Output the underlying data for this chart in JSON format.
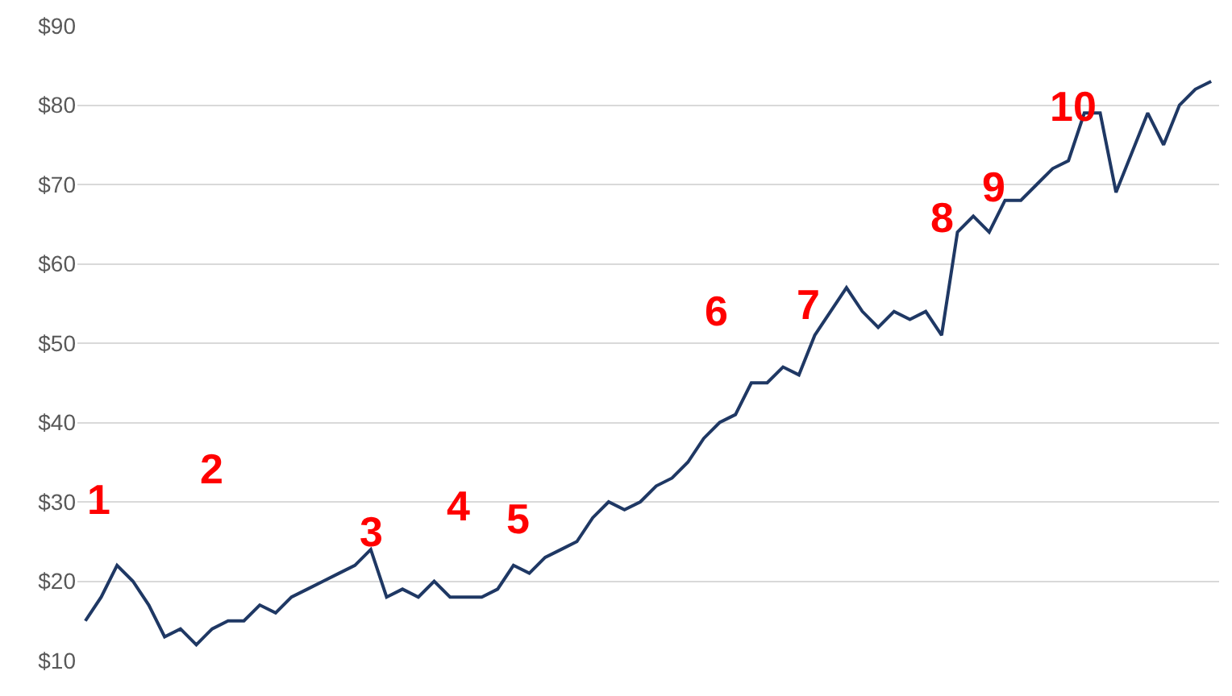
{
  "chart_data": {
    "type": "line",
    "tick_labels": "y",
    "grid": "y",
    "categories": [
      null,
      null,
      null,
      null,
      null,
      null,
      null,
      null,
      null,
      null,
      null,
      null,
      null,
      null,
      null,
      null,
      null,
      null,
      null,
      null,
      null,
      null,
      null,
      null,
      null,
      null,
      null,
      null,
      null,
      null,
      null,
      null,
      null,
      null,
      null,
      null,
      null,
      null,
      null,
      null,
      null,
      null,
      null,
      null,
      null,
      null,
      null,
      null,
      null,
      null,
      null,
      null,
      null,
      null,
      null,
      null,
      null,
      null,
      null,
      null,
      null,
      null,
      null,
      null,
      null,
      null,
      null,
      null,
      null,
      null,
      null,
      null
    ],
    "series": [
      {
        "color": "#1f3864",
        "values": [
          15,
          18,
          22,
          20,
          17,
          13,
          14,
          12,
          14,
          15,
          15,
          17,
          16,
          18,
          19,
          20,
          21,
          22,
          24,
          18,
          19,
          18,
          20,
          18,
          18,
          18,
          19,
          22,
          21,
          23,
          24,
          25,
          28,
          30,
          29,
          30,
          32,
          33,
          35,
          38,
          40,
          41,
          45,
          45,
          47,
          46,
          51,
          54,
          57,
          54,
          52,
          54,
          53,
          54,
          51,
          64,
          66,
          64,
          68,
          68,
          70,
          72,
          73,
          79,
          79,
          69,
          74,
          79,
          75,
          80,
          82,
          83
        ]
      }
    ],
    "ylim": [
      10,
      90
    ],
    "yticks": [
      {
        "value": 10,
        "label": "$10"
      },
      {
        "value": 20,
        "label": "$20"
      },
      {
        "value": 30,
        "label": "$30"
      },
      {
        "value": 40,
        "label": "$40"
      },
      {
        "value": 50,
        "label": "$50"
      },
      {
        "value": 60,
        "label": "$60"
      },
      {
        "value": 70,
        "label": "$70"
      },
      {
        "value": 80,
        "label": "$80"
      },
      {
        "value": 90,
        "label": "$90"
      }
    ],
    "annotations": [
      "1",
      "2",
      "3",
      "4",
      "5",
      "6",
      "7",
      "8",
      "9",
      "10"
    ]
  }
}
